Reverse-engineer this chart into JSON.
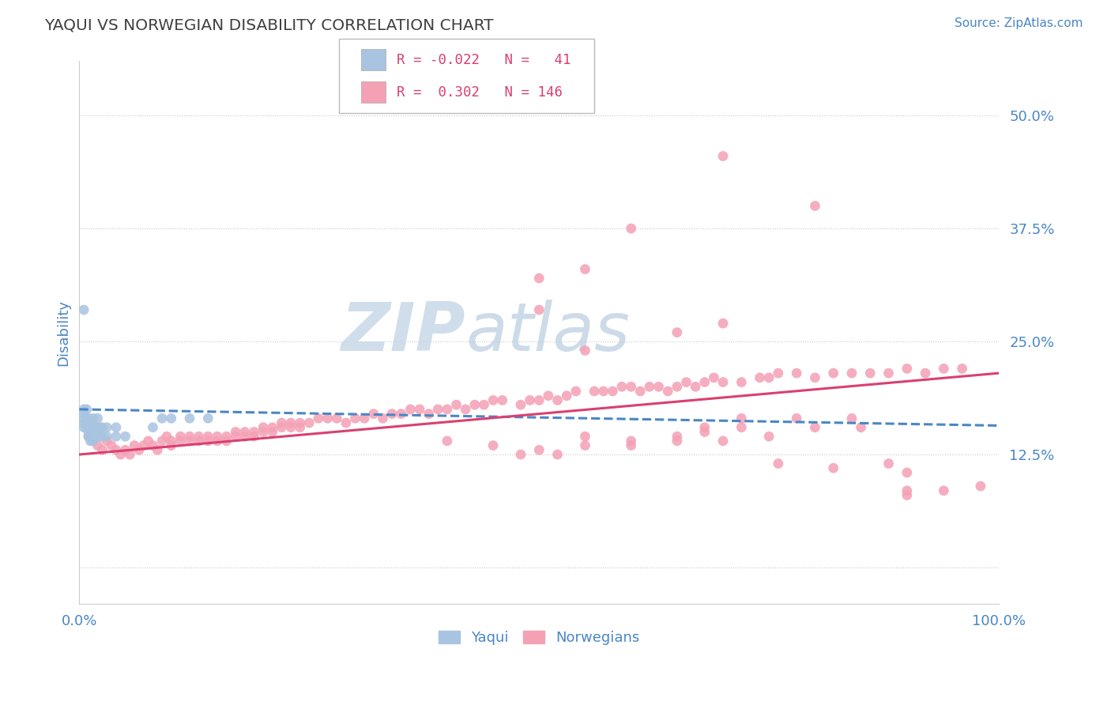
{
  "title": "YAQUI VS NORWEGIAN DISABILITY CORRELATION CHART",
  "source_text": "Source: ZipAtlas.com",
  "ylabel": "Disability",
  "xlim": [
    0,
    1.0
  ],
  "ylim": [
    -0.04,
    0.56
  ],
  "yticks": [
    0.0,
    0.125,
    0.25,
    0.375,
    0.5
  ],
  "ytick_labels": [
    "",
    "12.5%",
    "25.0%",
    "37.5%",
    "50.0%"
  ],
  "xticks": [
    0.0,
    0.1,
    0.2,
    0.3,
    0.4,
    0.5,
    0.6,
    0.7,
    0.8,
    0.9,
    1.0
  ],
  "xtick_labels": [
    "0.0%",
    "",
    "",
    "",
    "",
    "",
    "",
    "",
    "",
    "",
    "100.0%"
  ],
  "r_yaqui": -0.022,
  "n_yaqui": 41,
  "r_norwegian": 0.302,
  "n_norwegian": 146,
  "yaqui_color": "#a8c4e0",
  "norwegian_color": "#f4a0b5",
  "yaqui_line_color": "#4a86c8",
  "norwegian_line_color": "#d94070",
  "background_color": "#ffffff",
  "grid_color": "#c8c8c8",
  "title_color": "#404040",
  "axis_label_color": "#4a86c8",
  "watermark_text": "ZIPatlas",
  "watermark_color": "#dce8f0",
  "legend_r_color": "#d94070",
  "yaqui_scatter_x": [
    0.005,
    0.005,
    0.005,
    0.005,
    0.005,
    0.008,
    0.008,
    0.008,
    0.008,
    0.01,
    0.01,
    0.01,
    0.01,
    0.01,
    0.012,
    0.012,
    0.012,
    0.015,
    0.015,
    0.015,
    0.015,
    0.018,
    0.018,
    0.02,
    0.02,
    0.02,
    0.022,
    0.022,
    0.025,
    0.025,
    0.03,
    0.03,
    0.04,
    0.04,
    0.05,
    0.08,
    0.09,
    0.1,
    0.12,
    0.14,
    0.005
  ],
  "yaqui_scatter_y": [
    0.155,
    0.16,
    0.165,
    0.17,
    0.175,
    0.155,
    0.16,
    0.165,
    0.175,
    0.145,
    0.15,
    0.155,
    0.16,
    0.165,
    0.14,
    0.145,
    0.155,
    0.14,
    0.145,
    0.155,
    0.165,
    0.145,
    0.155,
    0.145,
    0.155,
    0.165,
    0.145,
    0.155,
    0.145,
    0.155,
    0.145,
    0.155,
    0.145,
    0.155,
    0.145,
    0.155,
    0.165,
    0.165,
    0.165,
    0.165,
    0.285
  ],
  "norwegian_scatter_x": [
    0.01,
    0.015,
    0.02,
    0.025,
    0.03,
    0.035,
    0.04,
    0.045,
    0.05,
    0.055,
    0.06,
    0.065,
    0.07,
    0.075,
    0.08,
    0.085,
    0.09,
    0.095,
    0.1,
    0.1,
    0.11,
    0.11,
    0.12,
    0.12,
    0.13,
    0.13,
    0.14,
    0.14,
    0.15,
    0.15,
    0.16,
    0.16,
    0.17,
    0.17,
    0.18,
    0.18,
    0.19,
    0.19,
    0.2,
    0.2,
    0.21,
    0.21,
    0.22,
    0.22,
    0.23,
    0.23,
    0.24,
    0.24,
    0.25,
    0.26,
    0.27,
    0.28,
    0.29,
    0.3,
    0.31,
    0.32,
    0.33,
    0.34,
    0.35,
    0.36,
    0.37,
    0.38,
    0.39,
    0.4,
    0.41,
    0.42,
    0.43,
    0.44,
    0.45,
    0.46,
    0.48,
    0.49,
    0.5,
    0.51,
    0.52,
    0.53,
    0.54,
    0.55,
    0.56,
    0.57,
    0.58,
    0.59,
    0.6,
    0.61,
    0.62,
    0.63,
    0.64,
    0.65,
    0.66,
    0.67,
    0.68,
    0.69,
    0.7,
    0.72,
    0.74,
    0.75,
    0.76,
    0.78,
    0.8,
    0.82,
    0.84,
    0.86,
    0.88,
    0.9,
    0.92,
    0.94,
    0.96,
    0.4,
    0.45,
    0.5,
    0.55,
    0.6,
    0.65,
    0.7,
    0.75,
    0.48,
    0.52,
    0.6,
    0.65,
    0.55,
    0.68,
    0.72,
    0.68,
    0.72,
    0.8,
    0.85,
    0.82,
    0.76,
    0.88,
    0.9,
    0.5,
    0.6,
    0.7,
    0.8,
    0.9,
    0.65,
    0.7,
    0.5,
    0.55,
    0.78,
    0.84,
    0.9,
    0.94,
    0.98
  ],
  "norwegian_scatter_y": [
    0.145,
    0.14,
    0.135,
    0.13,
    0.14,
    0.135,
    0.13,
    0.125,
    0.13,
    0.125,
    0.135,
    0.13,
    0.135,
    0.14,
    0.135,
    0.13,
    0.14,
    0.145,
    0.14,
    0.135,
    0.14,
    0.145,
    0.14,
    0.145,
    0.145,
    0.14,
    0.145,
    0.14,
    0.14,
    0.145,
    0.14,
    0.145,
    0.145,
    0.15,
    0.145,
    0.15,
    0.15,
    0.145,
    0.15,
    0.155,
    0.155,
    0.15,
    0.155,
    0.16,
    0.155,
    0.16,
    0.155,
    0.16,
    0.16,
    0.165,
    0.165,
    0.165,
    0.16,
    0.165,
    0.165,
    0.17,
    0.165,
    0.17,
    0.17,
    0.175,
    0.175,
    0.17,
    0.175,
    0.175,
    0.18,
    0.175,
    0.18,
    0.18,
    0.185,
    0.185,
    0.18,
    0.185,
    0.185,
    0.19,
    0.185,
    0.19,
    0.195,
    0.24,
    0.195,
    0.195,
    0.195,
    0.2,
    0.2,
    0.195,
    0.2,
    0.2,
    0.195,
    0.2,
    0.205,
    0.2,
    0.205,
    0.21,
    0.205,
    0.205,
    0.21,
    0.21,
    0.215,
    0.215,
    0.21,
    0.215,
    0.215,
    0.215,
    0.215,
    0.22,
    0.215,
    0.22,
    0.22,
    0.14,
    0.135,
    0.13,
    0.135,
    0.14,
    0.145,
    0.14,
    0.145,
    0.125,
    0.125,
    0.135,
    0.14,
    0.145,
    0.155,
    0.165,
    0.15,
    0.155,
    0.155,
    0.155,
    0.11,
    0.115,
    0.115,
    0.105,
    0.285,
    0.375,
    0.455,
    0.4,
    0.085,
    0.26,
    0.27,
    0.32,
    0.33,
    0.165,
    0.165,
    0.08,
    0.085,
    0.09
  ]
}
